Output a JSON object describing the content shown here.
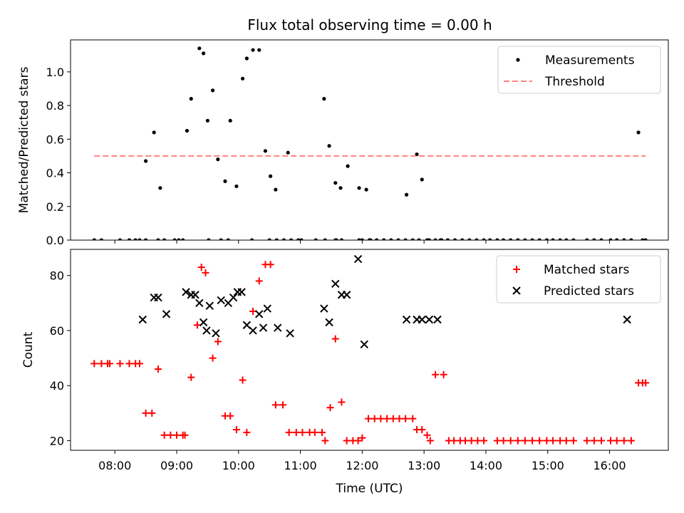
{
  "title": "Flux total observing time = 0.00 h",
  "colors": {
    "measurement": "#000000",
    "threshold": "#ff8080",
    "matched": "#ff0000",
    "predicted": "#000000"
  },
  "chart_data": [
    {
      "type": "scatter",
      "ylabel": "Matched/Predicted stars",
      "ylim": [
        0,
        1.19
      ],
      "yticks": [
        0.0,
        0.2,
        0.4,
        0.6,
        0.8,
        1.0
      ],
      "ytick_labels": [
        "0.0",
        "0.2",
        "0.4",
        "0.6",
        "0.8",
        "1.0"
      ],
      "xlim": [
        "07:17",
        "16:57"
      ],
      "legend_position": "top-right",
      "series": [
        {
          "name": "Measurements",
          "kind": "scatter",
          "marker": "dot",
          "x": [
            "07:40",
            "07:47",
            "08:05",
            "08:14",
            "08:20",
            "08:24",
            "08:30",
            "08:42",
            "08:48",
            "08:58",
            "09:02",
            "09:06",
            "09:31",
            "09:43",
            "09:50",
            "10:13",
            "10:30",
            "10:37",
            "10:44",
            "10:51",
            "10:58",
            "11:01",
            "11:15",
            "11:24",
            "11:34",
            "11:35",
            "11:40",
            "11:57",
            "12:00",
            "12:07",
            "12:08",
            "12:14",
            "12:21",
            "12:28",
            "12:35",
            "12:42",
            "12:49",
            "12:55",
            "13:03",
            "13:16",
            "13:23",
            "13:30",
            "13:37",
            "13:44",
            "13:51",
            "13:58",
            "14:04",
            "14:11",
            "14:17",
            "14:24",
            "14:31",
            "14:38",
            "14:45",
            "14:52",
            "14:59",
            "15:05",
            "15:12",
            "15:18",
            "15:25",
            "15:38",
            "15:45",
            "15:52",
            "16:01",
            "16:07",
            "16:14",
            "16:21",
            "16:32",
            "16:35",
            "16:28",
            "08:30",
            "08:38",
            "08:44",
            "09:10",
            "09:14",
            "09:22",
            "09:26",
            "09:30",
            "09:35",
            "09:40",
            "09:47",
            "09:52",
            "09:58",
            "10:04",
            "10:08",
            "10:14",
            "10:20",
            "10:26",
            "10:31",
            "10:36",
            "10:48",
            "11:23",
            "11:28",
            "11:34",
            "11:39",
            "11:46",
            "11:57",
            "12:04",
            "12:43",
            "12:53",
            "12:58",
            "13:05",
            "13:11",
            "13:17"
          ],
          "y": [
            0,
            0,
            0,
            0,
            0,
            0,
            0,
            0,
            0,
            0,
            0,
            0,
            0,
            0,
            0,
            0,
            0,
            0,
            0,
            0,
            0,
            0,
            0,
            0,
            0,
            0,
            0,
            0,
            0,
            0,
            0,
            0,
            0,
            0,
            0,
            0,
            0,
            0,
            0,
            0,
            0,
            0,
            0,
            0,
            0,
            0,
            0,
            0,
            0,
            0,
            0,
            0,
            0,
            0,
            0,
            0,
            0,
            0,
            0,
            0,
            0,
            0,
            0,
            0,
            0,
            0,
            0,
            0,
            0.64,
            0.47,
            0.64,
            0.31,
            0.65,
            0.84,
            1.14,
            1.11,
            0.71,
            0.89,
            0.48,
            0.35,
            0.71,
            0.32,
            0.96,
            1.08,
            1.13,
            1.13,
            0.53,
            0.38,
            0.3,
            0.52,
            0.84,
            0.56,
            0.34,
            0.31,
            0.44,
            0.31,
            0.3,
            0.27,
            0.51,
            0.36,
            0.0,
            0.0,
            0.0
          ]
        },
        {
          "name": "Threshold",
          "kind": "line",
          "style": "dashed",
          "x": [
            "07:40",
            "16:35"
          ],
          "y": [
            0.5,
            0.5
          ]
        }
      ]
    },
    {
      "type": "scatter",
      "ylabel": "Count",
      "xlabel": "Time (UTC)",
      "ylim": [
        16.5,
        89.5
      ],
      "yticks": [
        20,
        40,
        60,
        80
      ],
      "ytick_labels": [
        "20",
        "40",
        "60",
        "80"
      ],
      "xlim": [
        "07:17",
        "16:57"
      ],
      "xticks": [
        "08:00",
        "09:00",
        "10:00",
        "11:00",
        "12:00",
        "13:00",
        "14:00",
        "15:00",
        "16:00"
      ],
      "legend_position": "top-right",
      "series": [
        {
          "name": "Matched stars",
          "kind": "scatter",
          "marker": "plus",
          "x": [
            "07:40",
            "07:47",
            "07:53",
            "07:55",
            "08:05",
            "08:14",
            "08:20",
            "08:24",
            "08:30",
            "08:36",
            "08:42",
            "08:48",
            "08:54",
            "09:00",
            "09:06",
            "09:08",
            "09:14",
            "09:20",
            "09:24",
            "09:28",
            "09:35",
            "09:40",
            "09:47",
            "09:52",
            "09:58",
            "10:04",
            "10:08",
            "10:14",
            "10:20",
            "10:26",
            "10:31",
            "10:36",
            "10:43",
            "10:49",
            "10:56",
            "11:02",
            "11:09",
            "11:14",
            "11:21",
            "11:24",
            "11:29",
            "11:34",
            "11:40",
            "11:45",
            "11:51",
            "11:56",
            "12:00",
            "12:06",
            "12:12",
            "12:18",
            "12:24",
            "12:30",
            "12:36",
            "12:42",
            "12:49",
            "12:53",
            "12:58",
            "13:03",
            "13:06",
            "13:11",
            "13:19",
            "13:24",
            "13:29",
            "13:35",
            "13:40",
            "13:46",
            "13:52",
            "13:58",
            "14:11",
            "14:17",
            "14:24",
            "14:31",
            "14:38",
            "14:45",
            "14:52",
            "14:59",
            "15:05",
            "15:12",
            "15:18",
            "15:25",
            "15:38",
            "15:45",
            "15:52",
            "16:01",
            "16:07",
            "16:14",
            "16:21",
            "16:28",
            "16:32",
            "16:35"
          ],
          "y": [
            48,
            48,
            48,
            48,
            48,
            48,
            48,
            48,
            30,
            30,
            46,
            22,
            22,
            22,
            22,
            22,
            43,
            62,
            83,
            81,
            50,
            56,
            29,
            29,
            24,
            42,
            23,
            67,
            78,
            84,
            84,
            33,
            33,
            23,
            23,
            23,
            23,
            23,
            23,
            20,
            32,
            57,
            34,
            20,
            20,
            20,
            21,
            28,
            28,
            28,
            28,
            28,
            28,
            28,
            28,
            24,
            24,
            22,
            20,
            44,
            44,
            20,
            20,
            20,
            20,
            20,
            20,
            20,
            20,
            20,
            20,
            20,
            20,
            20,
            20,
            20,
            20,
            20,
            20,
            20,
            20,
            20,
            20,
            20,
            20,
            20,
            20,
            41,
            41,
            41
          ]
        },
        {
          "name": "Predicted stars",
          "kind": "scatter",
          "marker": "x",
          "x": [
            "08:27",
            "08:38",
            "08:42",
            "08:50",
            "09:09",
            "09:14",
            "09:18",
            "09:22",
            "09:26",
            "09:29",
            "09:32",
            "09:38",
            "09:43",
            "09:50",
            "09:55",
            "09:59",
            "10:03",
            "10:08",
            "10:14",
            "10:20",
            "10:24",
            "10:28",
            "10:38",
            "10:50",
            "11:23",
            "11:28",
            "11:34",
            "11:40",
            "11:45",
            "11:56",
            "12:02",
            "12:43",
            "12:53",
            "12:58",
            "13:05",
            "13:13",
            "16:17"
          ],
          "y": [
            64,
            72,
            72,
            66,
            74,
            73,
            73,
            70,
            63,
            60,
            69,
            59,
            71,
            70,
            72,
            74,
            74,
            62,
            60,
            66,
            61,
            68,
            61,
            59,
            68,
            63,
            77,
            73,
            73,
            86,
            55,
            64,
            64,
            64,
            64,
            64,
            64
          ]
        }
      ]
    }
  ]
}
